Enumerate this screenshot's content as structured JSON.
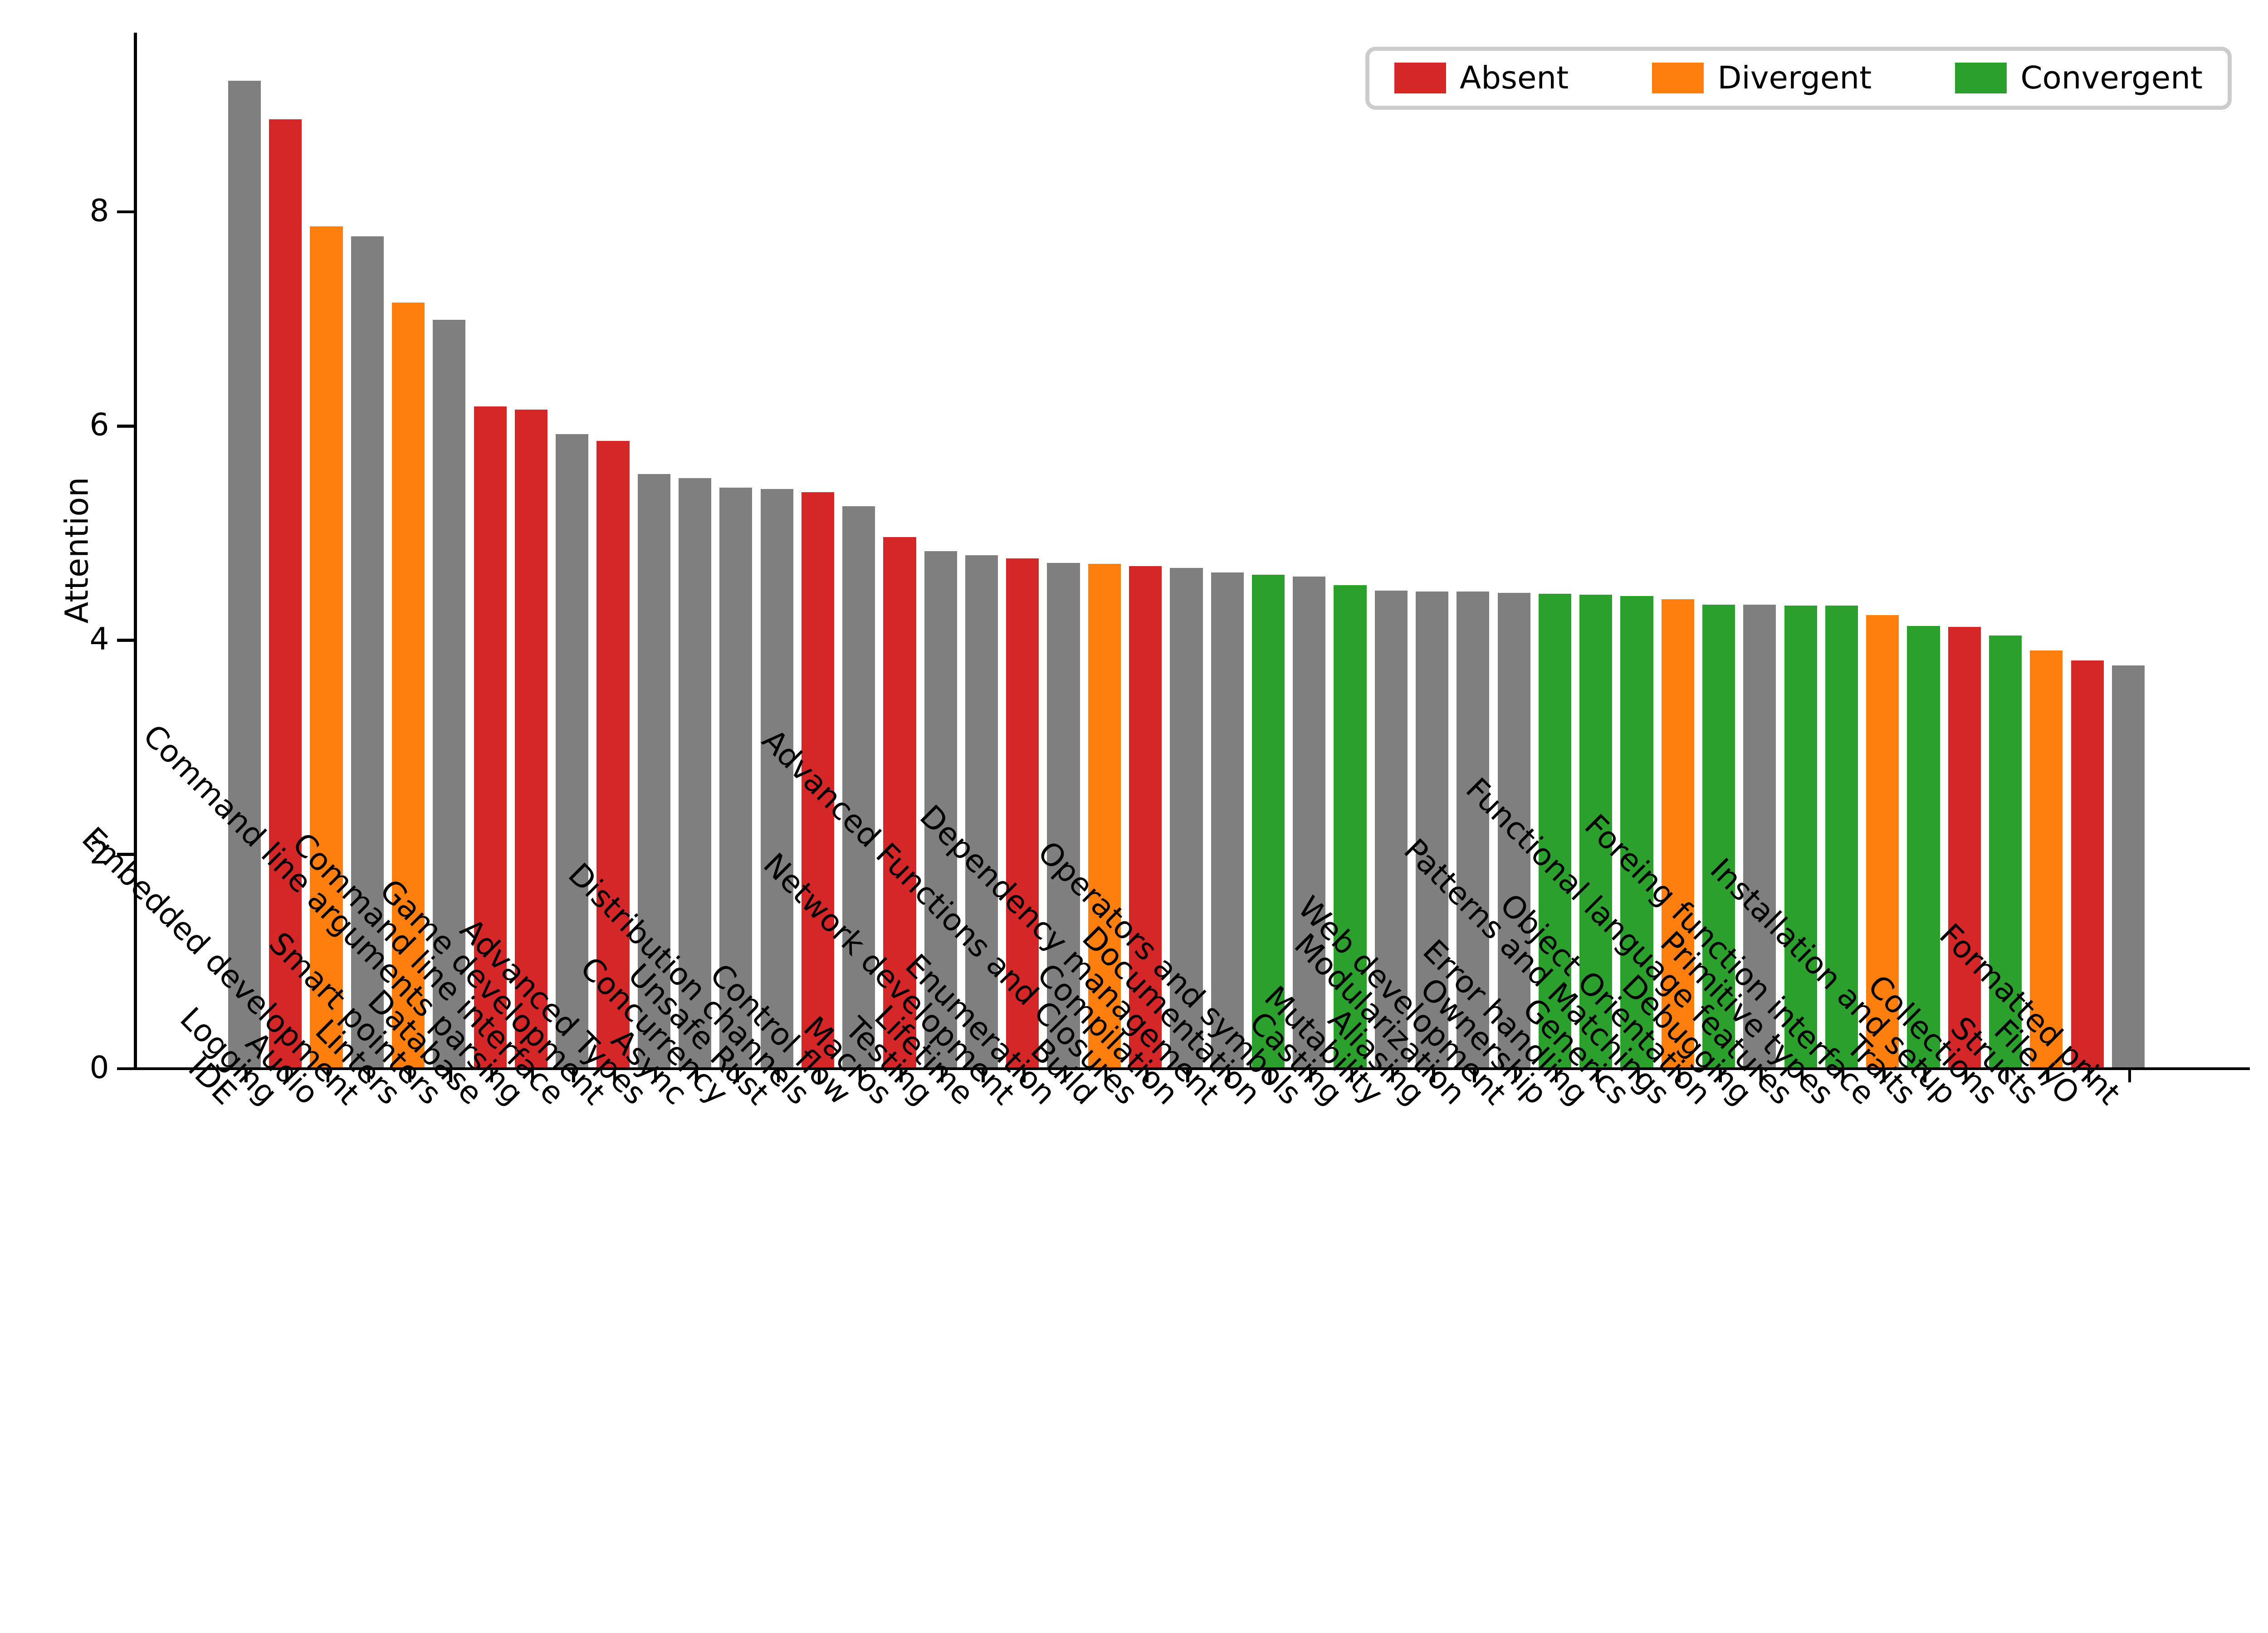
{
  "chart_data": {
    "type": "bar",
    "title": "",
    "xlabel": "",
    "ylabel": "Attention",
    "ylim": [
      0,
      9.66
    ],
    "yticks": [
      0,
      2,
      4,
      6,
      8
    ],
    "grid": false,
    "legend_position": "upper right",
    "default_color": "#7f7f7f",
    "status_colors": {
      "Absent": "#d62728",
      "Divergent": "#ff7f0e",
      "Convergent": "#2ca02c",
      "None": "#7f7f7f"
    },
    "legend": [
      {
        "label": "Absent",
        "color": "#d62728"
      },
      {
        "label": "Divergent",
        "color": "#ff7f0e"
      },
      {
        "label": "Convergent",
        "color": "#2ca02c"
      }
    ],
    "categories": [
      "IDE",
      "Logging",
      "Audio",
      "Embedded development",
      "Linters",
      "Smart pointers",
      "Database",
      "Command line arguments parsing",
      "Command line interface",
      "Game development",
      "Advanced Types",
      "Async",
      "Concurrency",
      "Unsafe Rust",
      "Distribution channels",
      "Control flow",
      "Macros",
      "Testing",
      "Lifetime",
      "Network development",
      "Enumeration",
      "Build",
      "Advanced Functions and Closures",
      "Compilation",
      "Dependency management",
      "Documentation",
      "Operators and symbols",
      "Casting",
      "Mutability",
      "Aliasing",
      "Modularization",
      "Web development",
      "Ownership",
      "Error handling",
      "Generics",
      "Patterns and Matchings",
      "Object Orientation",
      "Debugging",
      "Functional language features",
      "Primitive types",
      "Foreing function interface",
      "Traits",
      "Installation and setup",
      "Collections",
      "Structs",
      "File I/O",
      "Formatted print"
    ],
    "values": [
      9.21,
      8.85,
      7.85,
      7.76,
      7.14,
      6.98,
      6.17,
      6.14,
      5.91,
      5.85,
      5.54,
      5.5,
      5.41,
      5.4,
      5.37,
      5.24,
      4.95,
      4.82,
      4.78,
      4.75,
      4.71,
      4.7,
      4.68,
      4.66,
      4.62,
      4.6,
      4.58,
      4.5,
      4.45,
      4.44,
      4.44,
      4.43,
      4.42,
      4.41,
      4.4,
      4.37,
      4.32,
      4.32,
      4.31,
      4.31,
      4.22,
      4.12,
      4.11,
      4.03,
      3.89,
      3.8,
      3.75
    ],
    "statuses": [
      "None",
      "Absent",
      "Divergent",
      "None",
      "Divergent",
      "None",
      "Absent",
      "Absent",
      "None",
      "Absent",
      "None",
      "None",
      "None",
      "None",
      "Absent",
      "None",
      "Absent",
      "None",
      "None",
      "Absent",
      "None",
      "Divergent",
      "Absent",
      "None",
      "None",
      "Convergent",
      "None",
      "Convergent",
      "None",
      "None",
      "None",
      "None",
      "Convergent",
      "Convergent",
      "Convergent",
      "Divergent",
      "Convergent",
      "None",
      "Convergent",
      "Convergent",
      "Divergent",
      "Convergent",
      "Absent",
      "Convergent",
      "Divergent",
      "Absent",
      "None"
    ]
  }
}
